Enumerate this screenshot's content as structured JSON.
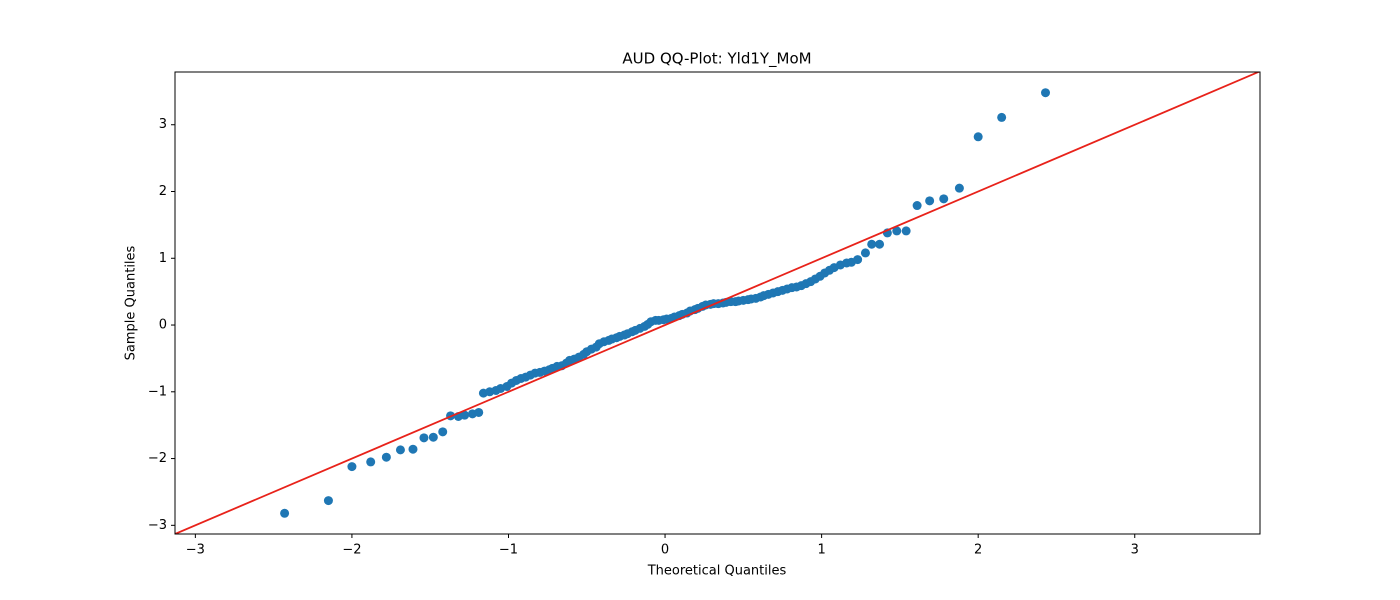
{
  "chart_data": {
    "type": "scatter",
    "title": "AUD QQ-Plot: Yld1Y_MoM",
    "x_label": "Theoretical Quantiles",
    "y_label": "Sample Quantiles",
    "xlim": [
      -3.13,
      3.8
    ],
    "ylim": [
      -3.13,
      3.79
    ],
    "xticks": [
      {
        "value": -3,
        "label": "−3"
      },
      {
        "value": -2,
        "label": "−2"
      },
      {
        "value": -1,
        "label": "−1"
      },
      0,
      1,
      2,
      3
    ],
    "yticks": [
      {
        "value": -3,
        "label": "−3"
      },
      {
        "value": -2,
        "label": "−2"
      },
      {
        "value": -1,
        "label": "−1"
      },
      0,
      1,
      2,
      3
    ],
    "reference_line": {
      "slope": 1,
      "intercept": 0,
      "color": "#e8221a"
    },
    "series": [
      {
        "color": "#1f77b4",
        "x": [
          -2.43,
          -2.15,
          -2.0,
          -1.88,
          -1.78,
          -1.69,
          -1.61,
          -1.54,
          -1.48,
          -1.42,
          -1.37,
          -1.32,
          -1.28,
          -1.23,
          -1.19,
          -1.16,
          -1.12,
          -1.08,
          -1.05,
          -1.01,
          -0.98,
          -0.95,
          -0.92,
          -0.89,
          -0.86,
          -0.83,
          -0.8,
          -0.77,
          -0.74,
          -0.72,
          -0.69,
          -0.66,
          -0.63,
          -0.61,
          -0.58,
          -0.55,
          -0.52,
          -0.5,
          -0.47,
          -0.44,
          -0.42,
          -0.39,
          -0.36,
          -0.34,
          -0.31,
          -0.29,
          -0.26,
          -0.24,
          -0.21,
          -0.19,
          -0.16,
          -0.13,
          -0.11,
          -0.09,
          -0.06,
          -0.04,
          -0.01,
          0.01,
          0.04,
          0.06,
          0.09,
          0.11,
          0.14,
          0.16,
          0.19,
          0.21,
          0.24,
          0.26,
          0.29,
          0.31,
          0.34,
          0.37,
          0.39,
          0.42,
          0.45,
          0.47,
          0.5,
          0.53,
          0.55,
          0.58,
          0.61,
          0.63,
          0.66,
          0.69,
          0.72,
          0.75,
          0.78,
          0.81,
          0.84,
          0.87,
          0.9,
          0.93,
          0.96,
          0.99,
          1.02,
          1.05,
          1.08,
          1.12,
          1.16,
          1.19,
          1.23,
          1.28,
          1.32,
          1.37,
          1.42,
          1.48,
          1.54,
          1.61,
          1.69,
          1.78,
          1.88,
          2.0,
          2.15,
          2.43
        ],
        "values": [
          -2.82,
          -2.63,
          -2.12,
          -2.05,
          -1.98,
          -1.87,
          -1.86,
          -1.69,
          -1.68,
          -1.6,
          -1.36,
          -1.37,
          -1.35,
          -1.33,
          -1.31,
          -1.02,
          -1.0,
          -0.98,
          -0.95,
          -0.92,
          -0.87,
          -0.83,
          -0.8,
          -0.78,
          -0.75,
          -0.72,
          -0.71,
          -0.69,
          -0.67,
          -0.65,
          -0.62,
          -0.61,
          -0.57,
          -0.53,
          -0.51,
          -0.48,
          -0.44,
          -0.4,
          -0.36,
          -0.33,
          -0.28,
          -0.25,
          -0.23,
          -0.21,
          -0.19,
          -0.17,
          -0.15,
          -0.13,
          -0.1,
          -0.08,
          -0.05,
          -0.02,
          0.01,
          0.05,
          0.07,
          0.07,
          0.08,
          0.09,
          0.1,
          0.12,
          0.14,
          0.16,
          0.18,
          0.21,
          0.23,
          0.25,
          0.28,
          0.3,
          0.31,
          0.32,
          0.32,
          0.33,
          0.34,
          0.35,
          0.35,
          0.36,
          0.37,
          0.38,
          0.39,
          0.4,
          0.42,
          0.44,
          0.46,
          0.48,
          0.5,
          0.52,
          0.54,
          0.56,
          0.57,
          0.59,
          0.62,
          0.65,
          0.69,
          0.73,
          0.78,
          0.82,
          0.86,
          0.9,
          0.93,
          0.94,
          0.98,
          1.08,
          1.21,
          1.21,
          1.38,
          1.41,
          1.41,
          1.79,
          1.86,
          1.89,
          2.05,
          2.82,
          3.11,
          3.48
        ]
      }
    ]
  }
}
